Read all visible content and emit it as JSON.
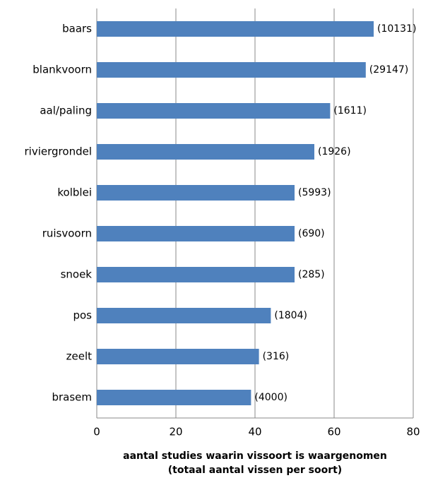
{
  "chart_data": {
    "type": "barh",
    "categories": [
      "baars",
      "blankvoorn",
      "aal/paling",
      "riviergrondel",
      "kolblei",
      "ruisvoorn",
      "snoek",
      "pos",
      "zeelt",
      "brasem"
    ],
    "values": [
      70,
      68,
      59,
      55,
      50,
      50,
      50,
      44,
      41,
      39
    ],
    "annotations": [
      "(10131)",
      "(29147)",
      "(1611)",
      "(1926)",
      "(5993)",
      "(690)",
      "(285)",
      "(1804)",
      "(316)",
      "(4000)"
    ],
    "color": "#4f81bd",
    "xlim": [
      0,
      80
    ],
    "xticks": [
      0,
      20,
      40,
      60,
      80
    ],
    "grid": true,
    "xlabel": [
      "aantal studies waarin vissoort is waargenomen",
      "(totaal aantal vissen per soort)"
    ]
  }
}
